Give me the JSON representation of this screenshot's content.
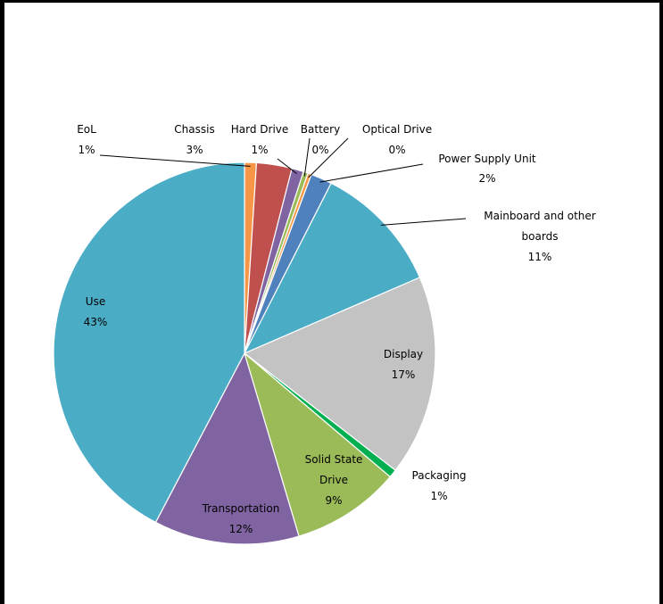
{
  "chart_data": {
    "type": "pie",
    "slices": [
      {
        "label": "EoL",
        "pct_label": "1%",
        "value": 1,
        "color": "#f79646"
      },
      {
        "label": "Chassis",
        "pct_label": "3%",
        "value": 3,
        "color": "#c0504d"
      },
      {
        "label": "Hard Drive",
        "pct_label": "1%",
        "value": 1,
        "color": "#8064a2"
      },
      {
        "label": "Battery",
        "pct_label": "0%",
        "value": 0.4,
        "color": "#9bbb59"
      },
      {
        "label": "Optical Drive",
        "pct_label": "0%",
        "value": 0.3,
        "color": "#f79646"
      },
      {
        "label": "Power Supply Unit",
        "pct_label": "2%",
        "value": 1.8,
        "color": "#4f81bd"
      },
      {
        "label": "Mainboard and other boards",
        "pct_label": "11%",
        "value": 11,
        "color": "#4bacc6"
      },
      {
        "label": "Display",
        "pct_label": "17%",
        "value": 17,
        "color": "#c3c3c3"
      },
      {
        "label": "Packaging",
        "pct_label": "1%",
        "value": 0.7,
        "color": "#00b050"
      },
      {
        "label": "Solid State Drive",
        "pct_label": "9%",
        "value": 9.2,
        "color": "#9bbb59"
      },
      {
        "label": "Transportation",
        "pct_label": "12%",
        "value": 12.3,
        "color": "#8064a2"
      },
      {
        "label": "Use",
        "pct_label": "43%",
        "value": 42.3,
        "color": "#4bacc6"
      }
    ]
  }
}
